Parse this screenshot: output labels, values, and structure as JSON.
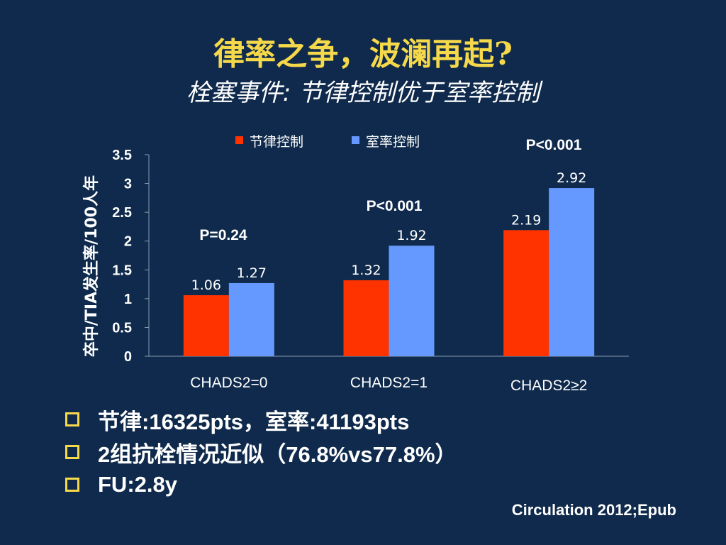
{
  "slide": {
    "title": "律率之争，波澜再起?",
    "subtitle": "栓塞事件: 节律控制优于室率控制",
    "bullets": [
      "节律:16325pts，室率:41193pts",
      "2组抗栓情况近似（76.8%vs77.8%）",
      "FU:2.8y"
    ],
    "citation": "Circulation 2012;Epub",
    "colors": {
      "background": "#0f2a4c",
      "title": "#f5d94a",
      "bullet_marker": "#f5d94a"
    }
  },
  "chart_data": {
    "type": "bar",
    "title": "",
    "xlabel": "",
    "ylabel": "卒中/TIA发生率/100人年",
    "categories": [
      "CHADS2=0",
      "CHADS2=1",
      "CHADS2≥2"
    ],
    "series": [
      {
        "name": "节律控制",
        "color": "#ff3300",
        "values": [
          1.06,
          1.32,
          2.19
        ],
        "labels": [
          "1.06",
          "1.32",
          "2.19"
        ]
      },
      {
        "name": "室率控制",
        "color": "#6699ff",
        "values": [
          1.27,
          1.92,
          2.92
        ],
        "labels": [
          "1.27",
          "1.92",
          "2.92"
        ]
      }
    ],
    "ylim": [
      0,
      3.5
    ],
    "yticks": [
      0,
      0.5,
      1,
      1.5,
      2,
      2.5,
      3,
      3.5
    ],
    "ytick_labels": [
      "0",
      "0.5",
      "1",
      "1.5",
      "2",
      "2.5",
      "3",
      "3.5"
    ],
    "annotations": [
      "P=0.24",
      "P<0.001",
      "P<0.001"
    ],
    "grid": false,
    "legend_position": "top"
  }
}
